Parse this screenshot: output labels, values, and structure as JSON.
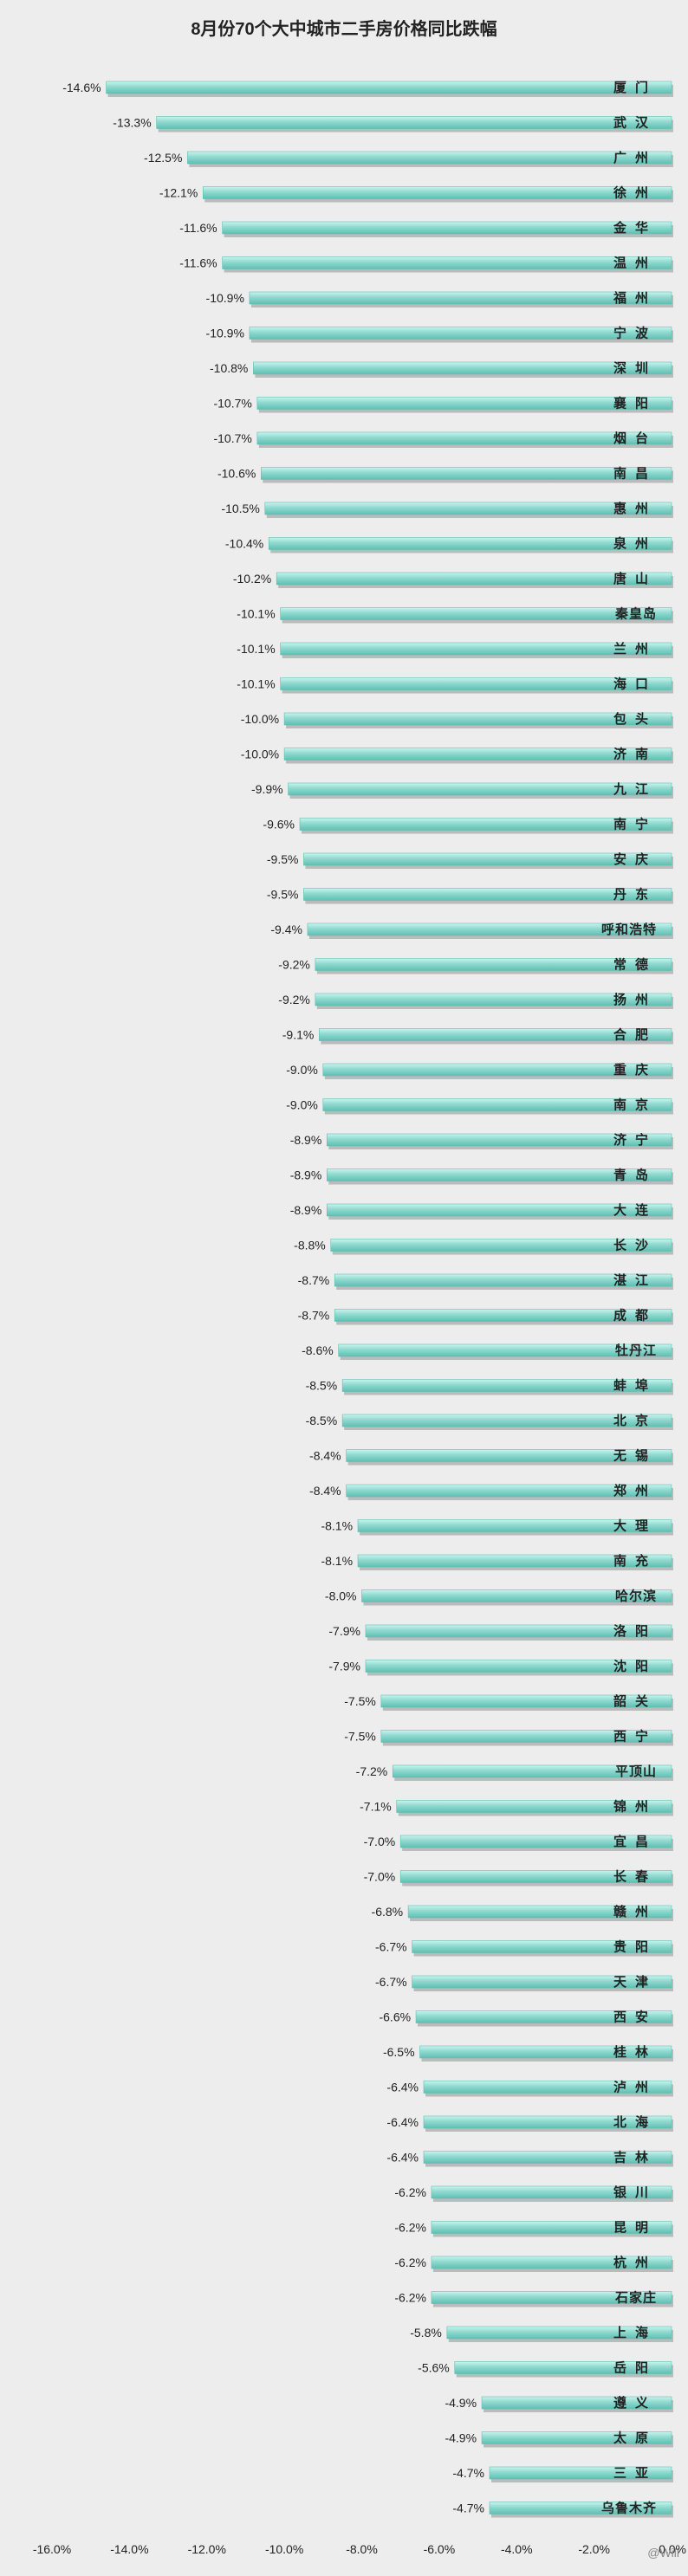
{
  "watermark": "@Will",
  "chart_data": {
    "type": "bar",
    "orientation": "horizontal",
    "title": "8月份70个大中城市二手房价格同比跌幅",
    "xlim": [
      -16.0,
      0.0
    ],
    "x_ticks": [
      "-16.0%",
      "-14.0%",
      "-12.0%",
      "-10.0%",
      "-8.0%",
      "-6.0%",
      "-4.0%",
      "-2.0%",
      "0.0%"
    ],
    "categories": [
      "厦门",
      "武汉",
      "广州",
      "徐州",
      "金华",
      "温州",
      "福州",
      "宁波",
      "深圳",
      "襄阳",
      "烟台",
      "南昌",
      "惠州",
      "泉州",
      "唐山",
      "秦皇岛",
      "兰州",
      "海口",
      "包头",
      "济南",
      "九江",
      "南宁",
      "安庆",
      "丹东",
      "呼和浩特",
      "常德",
      "扬州",
      "合肥",
      "重庆",
      "南京",
      "济宁",
      "青岛",
      "大连",
      "长沙",
      "湛江",
      "成都",
      "牡丹江",
      "蚌埠",
      "北京",
      "无锡",
      "郑州",
      "大理",
      "南充",
      "哈尔滨",
      "洛阳",
      "沈阳",
      "韶关",
      "西宁",
      "平顶山",
      "锦州",
      "宜昌",
      "长春",
      "赣州",
      "贵阳",
      "天津",
      "西安",
      "桂林",
      "泸州",
      "北海",
      "吉林",
      "银川",
      "昆明",
      "杭州",
      "石家庄",
      "上海",
      "岳阳",
      "遵义",
      "太原",
      "三亚",
      "乌鲁木齐"
    ],
    "values": [
      -14.6,
      -13.3,
      -12.5,
      -12.1,
      -11.6,
      -11.6,
      -10.9,
      -10.9,
      -10.8,
      -10.7,
      -10.7,
      -10.6,
      -10.5,
      -10.4,
      -10.2,
      -10.1,
      -10.1,
      -10.1,
      -10.0,
      -10.0,
      -9.9,
      -9.6,
      -9.5,
      -9.5,
      -9.4,
      -9.2,
      -9.2,
      -9.1,
      -9.0,
      -9.0,
      -8.9,
      -8.9,
      -8.9,
      -8.8,
      -8.7,
      -8.7,
      -8.6,
      -8.5,
      -8.5,
      -8.4,
      -8.4,
      -8.1,
      -8.1,
      -8.0,
      -7.9,
      -7.9,
      -7.5,
      -7.5,
      -7.2,
      -7.1,
      -7.0,
      -7.0,
      -6.8,
      -6.7,
      -6.7,
      -6.6,
      -6.5,
      -6.4,
      -6.4,
      -6.4,
      -6.2,
      -6.2,
      -6.2,
      -6.2,
      -5.8,
      -5.6,
      -4.9,
      -4.9,
      -4.7,
      -4.7
    ],
    "value_labels": [
      "-14.6%",
      "-13.3%",
      "-12.5%",
      "-12.1%",
      "-11.6%",
      "-11.6%",
      "-10.9%",
      "-10.9%",
      "-10.8%",
      "-10.7%",
      "-10.7%",
      "-10.6%",
      "-10.5%",
      "-10.4%",
      "-10.2%",
      "-10.1%",
      "-10.1%",
      "-10.1%",
      "-10.0%",
      "-10.0%",
      "-9.9%",
      "-9.6%",
      "-9.5%",
      "-9.5%",
      "-9.4%",
      "-9.2%",
      "-9.2%",
      "-9.1%",
      "-9.0%",
      "-9.0%",
      "-8.9%",
      "-8.9%",
      "-8.9%",
      "-8.8%",
      "-8.7%",
      "-8.7%",
      "-8.6%",
      "-8.5%",
      "-8.5%",
      "-8.4%",
      "-8.4%",
      "-8.1%",
      "-8.1%",
      "-8.0%",
      "-7.9%",
      "-7.9%",
      "-7.5%",
      "-7.5%",
      "-7.2%",
      "-7.1%",
      "-7.0%",
      "-7.0%",
      "-6.8%",
      "-6.7%",
      "-6.7%",
      "-6.6%",
      "-6.5%",
      "-6.4%",
      "-6.4%",
      "-6.4%",
      "-6.2%",
      "-6.2%",
      "-6.2%",
      "-6.2%",
      "-5.8%",
      "-5.6%",
      "-4.9%",
      "-4.9%",
      "-4.7%",
      "-4.7%"
    ],
    "grid": false,
    "legend": "none",
    "colors": {
      "bar_light": "#c8f4ee",
      "bar_mid": "#8fd9cf",
      "bar_dark": "#5fbfb2",
      "bar_shadow": "#b8bcbb",
      "background": "#ededed",
      "text": "#222222"
    }
  }
}
